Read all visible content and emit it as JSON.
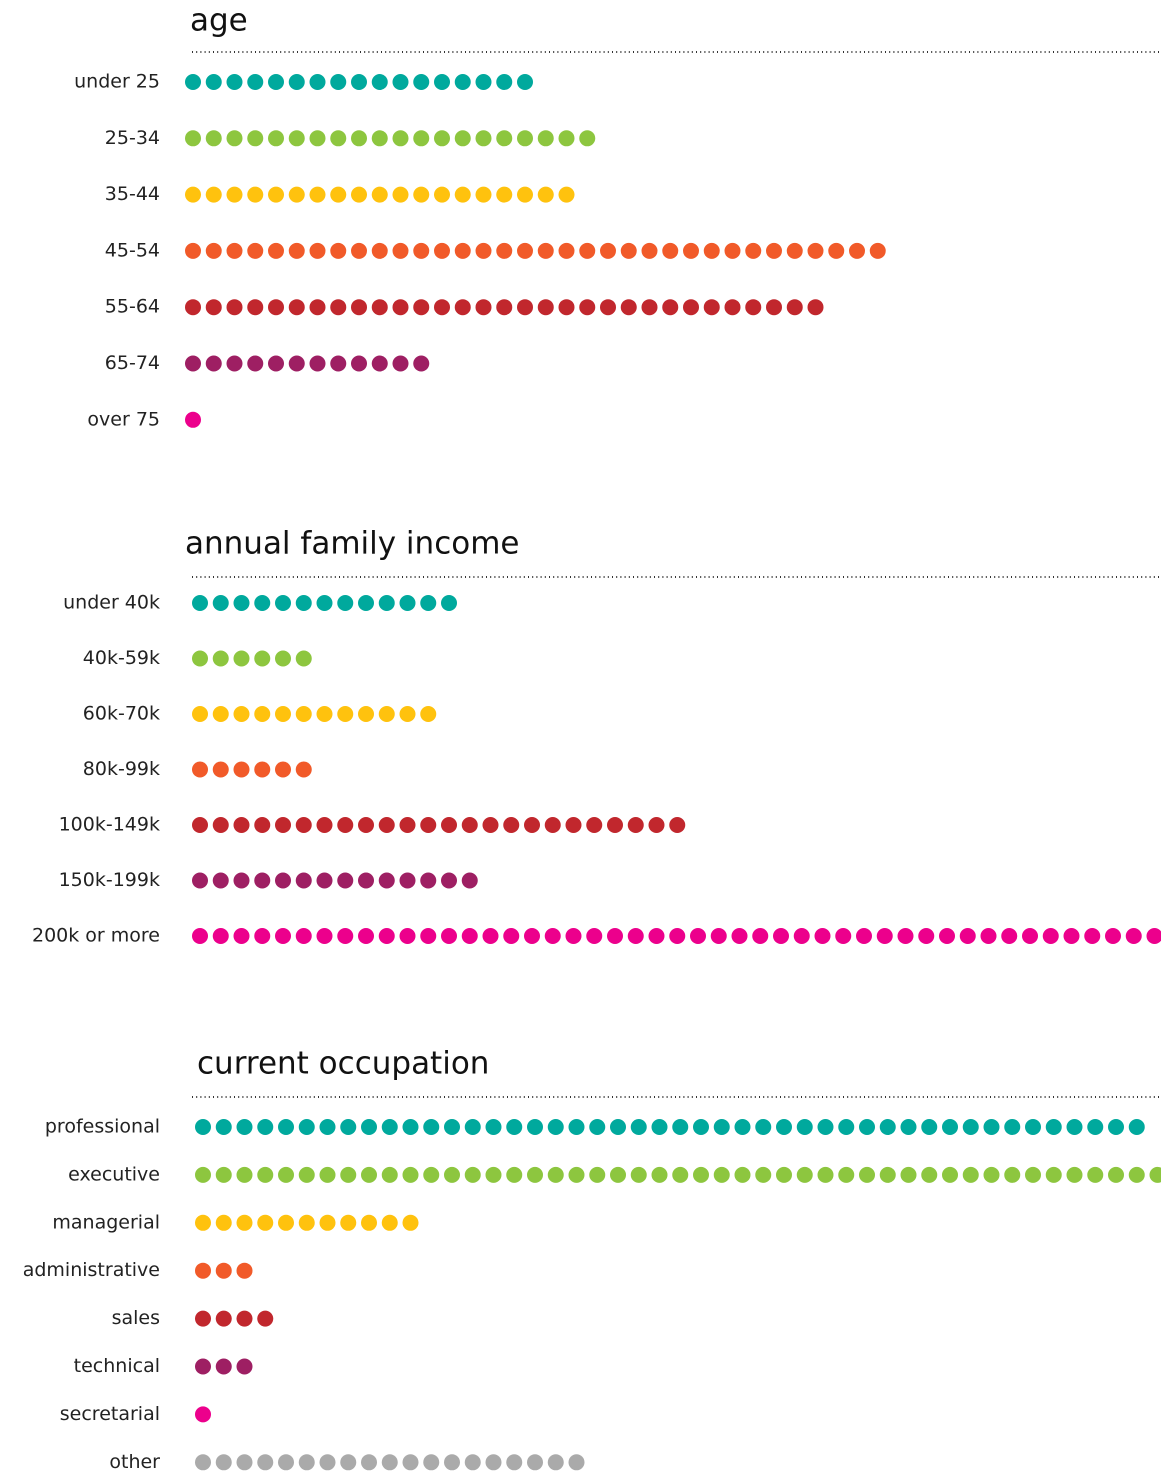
{
  "chart_data": [
    {
      "type": "dot",
      "title": "age",
      "categories": [
        "under 25",
        "25-34",
        "35-44",
        "45-54",
        "55-64",
        "65-74",
        "over 75"
      ],
      "values": [
        17,
        20,
        19,
        34,
        31,
        12,
        1
      ],
      "colors": [
        "#00a99d",
        "#8dc63f",
        "#ffc20e",
        "#f15a29",
        "#c1272d",
        "#9e1f63",
        "#ec008c"
      ]
    },
    {
      "type": "dot",
      "title": "annual family income",
      "categories": [
        "under 40k",
        "40k-59k",
        "60k-70k",
        "80k-99k",
        "100k-149k",
        "150k-199k",
        "200k or more"
      ],
      "values": [
        13,
        6,
        12,
        6,
        24,
        14,
        47
      ],
      "colors": [
        "#00a99d",
        "#8dc63f",
        "#ffc20e",
        "#f15a29",
        "#c1272d",
        "#9e1f63",
        "#ec008c"
      ]
    },
    {
      "type": "dot",
      "title": "current occupation",
      "categories": [
        "professional",
        "executive",
        "managerial",
        "administrative",
        "sales",
        "technical",
        "secretarial",
        "other"
      ],
      "values": [
        46,
        47,
        11,
        3,
        4,
        3,
        1,
        19
      ],
      "colors": [
        "#00a99d",
        "#8dc63f",
        "#ffc20e",
        "#f15a29",
        "#c1272d",
        "#9e1f63",
        "#ec008c",
        "#aaaaaa"
      ]
    }
  ]
}
